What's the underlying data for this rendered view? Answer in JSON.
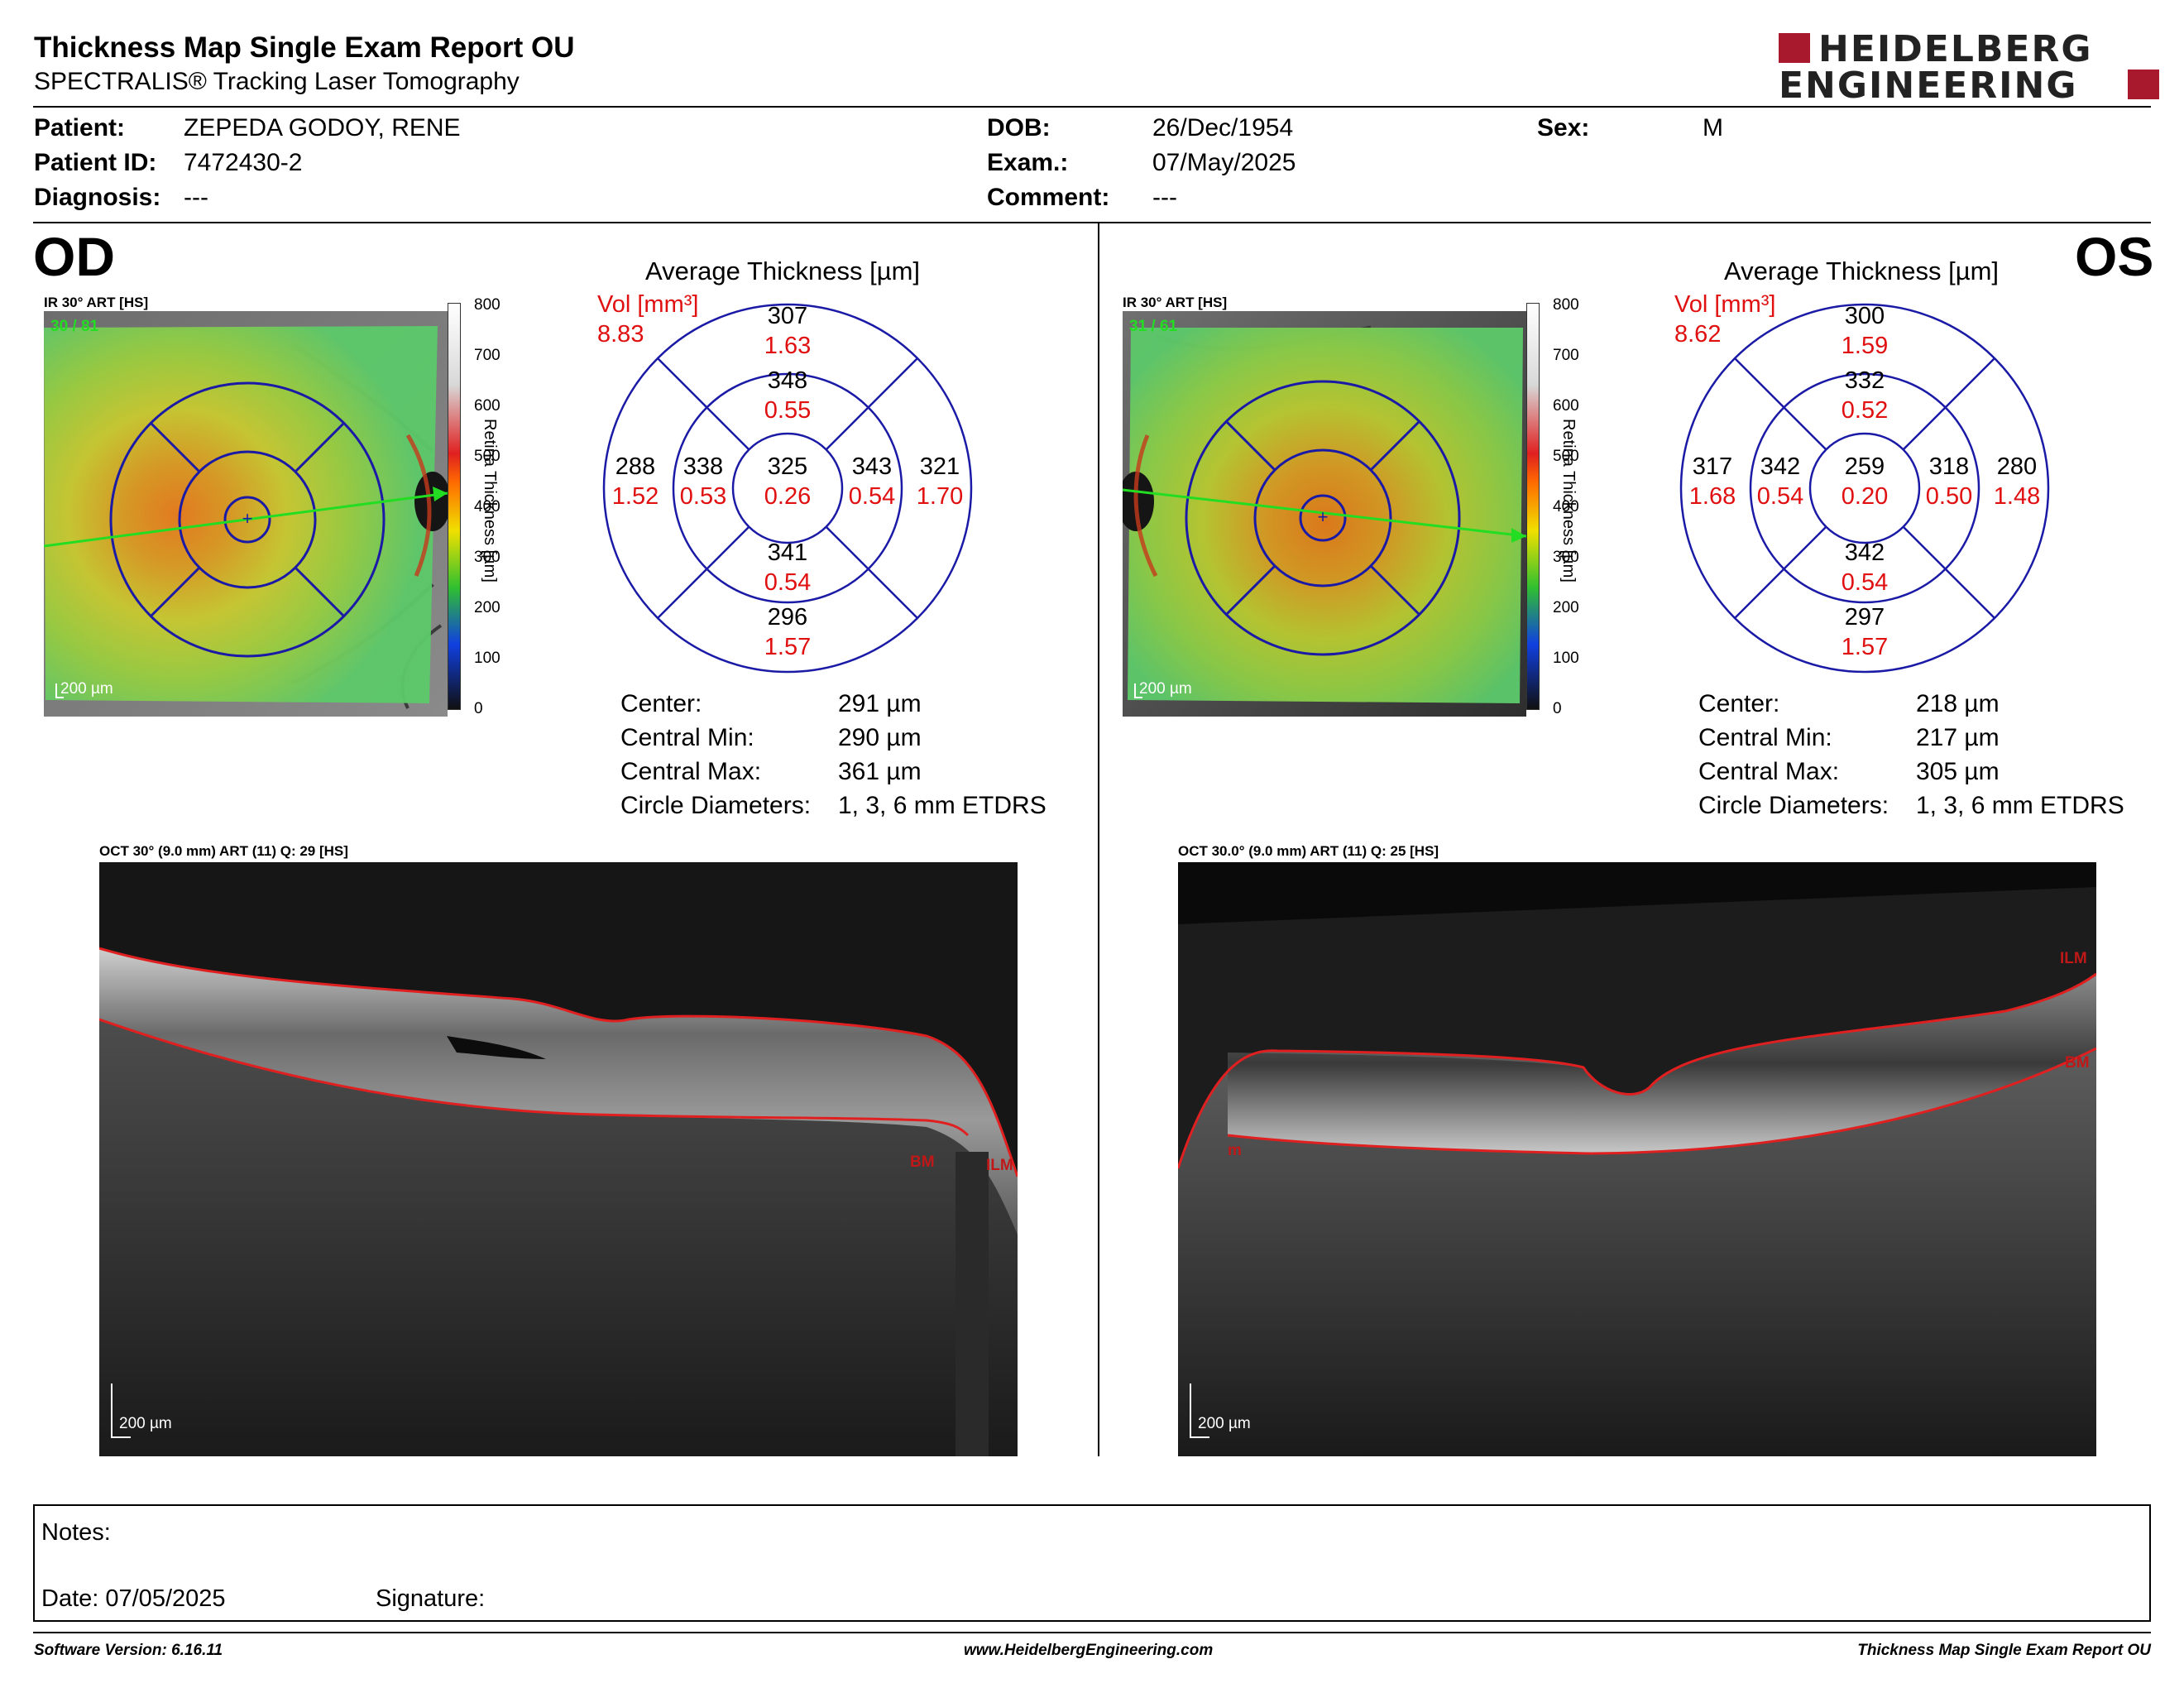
{
  "header": {
    "title": "Thickness Map Single Exam Report OU",
    "subtitle": "SPECTRALIS® Tracking Laser Tomography",
    "logo": {
      "line1": "HEIDELBERG",
      "line2": "ENGINEERING",
      "accent_color": "#a8192e"
    }
  },
  "patient": {
    "patient_label": "Patient:",
    "patient_value": "ZEPEDA GODOY, RENE",
    "id_label": "Patient ID:",
    "id_value": "7472430-2",
    "diagnosis_label": "Diagnosis:",
    "diagnosis_value": "---",
    "dob_label": "DOB:",
    "dob_value": "26/Dec/1954",
    "exam_label": "Exam.:",
    "exam_value": "07/May/2025",
    "comment_label": "Comment:",
    "comment_value": "---",
    "sex_label": "Sex:",
    "sex_value": "M"
  },
  "od": {
    "eye": "OD",
    "ir_caption": "IR 30° ART [HS]",
    "ir_art": "30 / 81",
    "scalebar": "200 µm",
    "color_scale": {
      "title": "Retina  Thickness [µm]",
      "ticks": [
        "800",
        "700",
        "600",
        "500",
        "400",
        "300",
        "200",
        "100",
        "0"
      ]
    },
    "avg_title": "Average Thickness [µm]",
    "vol_label": "Vol [mm³]",
    "vol_total": "8.83",
    "sectors": {
      "center": {
        "t": "325",
        "v": "0.26"
      },
      "inner_sup": {
        "t": "348",
        "v": "0.55"
      },
      "inner_inf": {
        "t": "341",
        "v": "0.54"
      },
      "inner_left": {
        "t": "338",
        "v": "0.53"
      },
      "inner_right": {
        "t": "343",
        "v": "0.54"
      },
      "outer_sup": {
        "t": "307",
        "v": "1.63"
      },
      "outer_inf": {
        "t": "296",
        "v": "1.57"
      },
      "outer_left": {
        "t": "288",
        "v": "1.52"
      },
      "outer_right": {
        "t": "321",
        "v": "1.70"
      }
    },
    "summary": [
      {
        "label": "Center:",
        "value": "291 µm"
      },
      {
        "label": "Central Min:",
        "value": "290 µm"
      },
      {
        "label": "Central Max:",
        "value": "361 µm"
      },
      {
        "label": "Circle Diameters:",
        "value": "1, 3, 6 mm ETDRS"
      }
    ],
    "oct_caption": "OCT 30° (9.0 mm) ART (11) Q: 29 [HS]",
    "oct_scalebar": "200 µm",
    "layer_labels": {
      "bm": "BM",
      "ilm": "ILM"
    }
  },
  "os": {
    "eye": "OS",
    "ir_caption": "IR 30° ART [HS]",
    "ir_art": "31 / 61",
    "scalebar": "200 µm",
    "color_scale": {
      "title": "Retina  Thickness [µm]",
      "ticks": [
        "800",
        "700",
        "600",
        "500",
        "400",
        "300",
        "200",
        "100",
        "0"
      ]
    },
    "avg_title": "Average Thickness [µm]",
    "vol_label": "Vol [mm³]",
    "vol_total": "8.62",
    "sectors": {
      "center": {
        "t": "259",
        "v": "0.20"
      },
      "inner_sup": {
        "t": "332",
        "v": "0.52"
      },
      "inner_inf": {
        "t": "342",
        "v": "0.54"
      },
      "inner_left": {
        "t": "342",
        "v": "0.54"
      },
      "inner_right": {
        "t": "318",
        "v": "0.50"
      },
      "outer_sup": {
        "t": "300",
        "v": "1.59"
      },
      "outer_inf": {
        "t": "297",
        "v": "1.57"
      },
      "outer_left": {
        "t": "317",
        "v": "1.68"
      },
      "outer_right": {
        "t": "280",
        "v": "1.48"
      }
    },
    "summary": [
      {
        "label": "Center:",
        "value": "218 µm"
      },
      {
        "label": "Central Min:",
        "value": "217 µm"
      },
      {
        "label": "Central Max:",
        "value": "305 µm"
      },
      {
        "label": "Circle Diameters:",
        "value": "1, 3, 6 mm ETDRS"
      }
    ],
    "oct_caption": "OCT 30.0° (9.0 mm) ART (11) Q: 25 [HS]",
    "oct_scalebar": "200 µm",
    "layer_labels": {
      "bm": "BM",
      "ilm": "ILM",
      "bm_left": "m"
    }
  },
  "notes": {
    "notes_label": "Notes:",
    "date_label": "Date: 07/05/2025",
    "signature_label": "Signature:"
  },
  "footer": {
    "software": "Software Version: 6.16.11",
    "website": "www.HeidelbergEngineering.com",
    "report": "Thickness Map Single Exam Report OU"
  },
  "colors": {
    "vol_red": "#e01010",
    "etdrs_blue": "#1a1aa6",
    "scan_green": "#22dd22",
    "layer_red": "#e02020"
  }
}
